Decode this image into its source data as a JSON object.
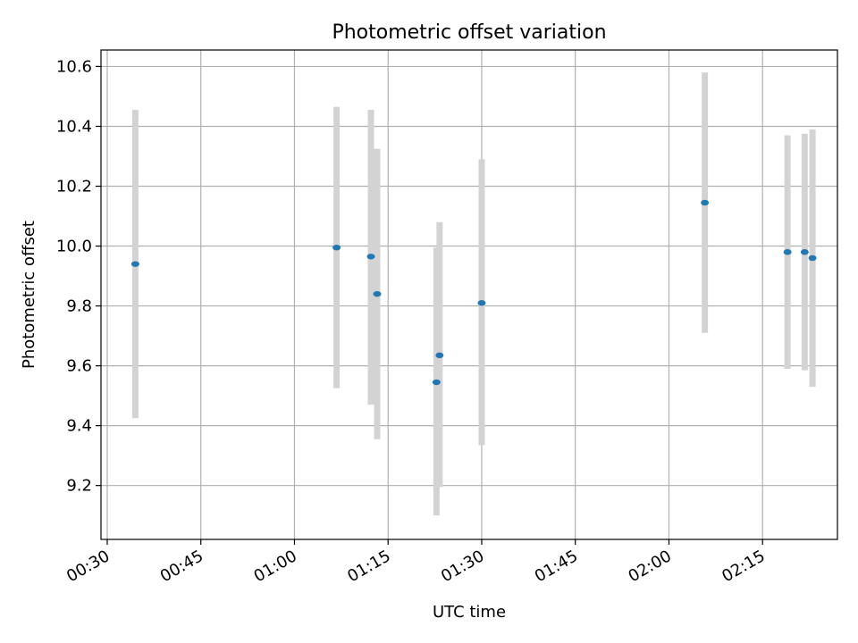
{
  "chart_data": {
    "type": "scatter",
    "title": "Photometric offset variation",
    "xlabel": "UTC time",
    "ylabel": "Photometric offset",
    "xlim": [
      "00:29",
      "02:27"
    ],
    "ylim": [
      9.02,
      10.655
    ],
    "x_ticks": [
      "00:30",
      "00:45",
      "01:00",
      "01:15",
      "01:30",
      "01:45",
      "02:00",
      "02:15"
    ],
    "y_ticks": [
      9.2,
      9.4,
      9.6,
      9.8,
      10.0,
      10.2,
      10.4,
      10.6
    ],
    "y_tick_labels": [
      "9.2",
      "9.4",
      "9.6",
      "9.8",
      "10.0",
      "10.2",
      "10.4",
      "10.6"
    ],
    "grid": true,
    "point_color": "#1f77b4",
    "errorbar_color": "#d3d3d3",
    "points": [
      {
        "x": "00:34:30",
        "y": 9.94,
        "ylow": 9.425,
        "yhigh": 10.455
      },
      {
        "x": "01:06:45",
        "y": 9.995,
        "ylow": 9.525,
        "yhigh": 10.465
      },
      {
        "x": "01:12:15",
        "y": 9.965,
        "ylow": 9.47,
        "yhigh": 10.455
      },
      {
        "x": "01:13:15",
        "y": 9.84,
        "ylow": 9.355,
        "yhigh": 10.325
      },
      {
        "x": "01:22:45",
        "y": 9.545,
        "ylow": 9.1,
        "yhigh": 9.995
      },
      {
        "x": "01:23:15",
        "y": 9.635,
        "ylow": 9.195,
        "yhigh": 10.08
      },
      {
        "x": "01:30:00",
        "y": 9.81,
        "ylow": 9.335,
        "yhigh": 10.29
      },
      {
        "x": "02:05:45",
        "y": 10.145,
        "ylow": 9.71,
        "yhigh": 10.58
      },
      {
        "x": "02:19:00",
        "y": 9.98,
        "ylow": 9.59,
        "yhigh": 10.37
      },
      {
        "x": "02:21:45",
        "y": 9.98,
        "ylow": 9.585,
        "yhigh": 10.375
      },
      {
        "x": "02:23:00",
        "y": 9.96,
        "ylow": 9.53,
        "yhigh": 10.39
      }
    ]
  }
}
